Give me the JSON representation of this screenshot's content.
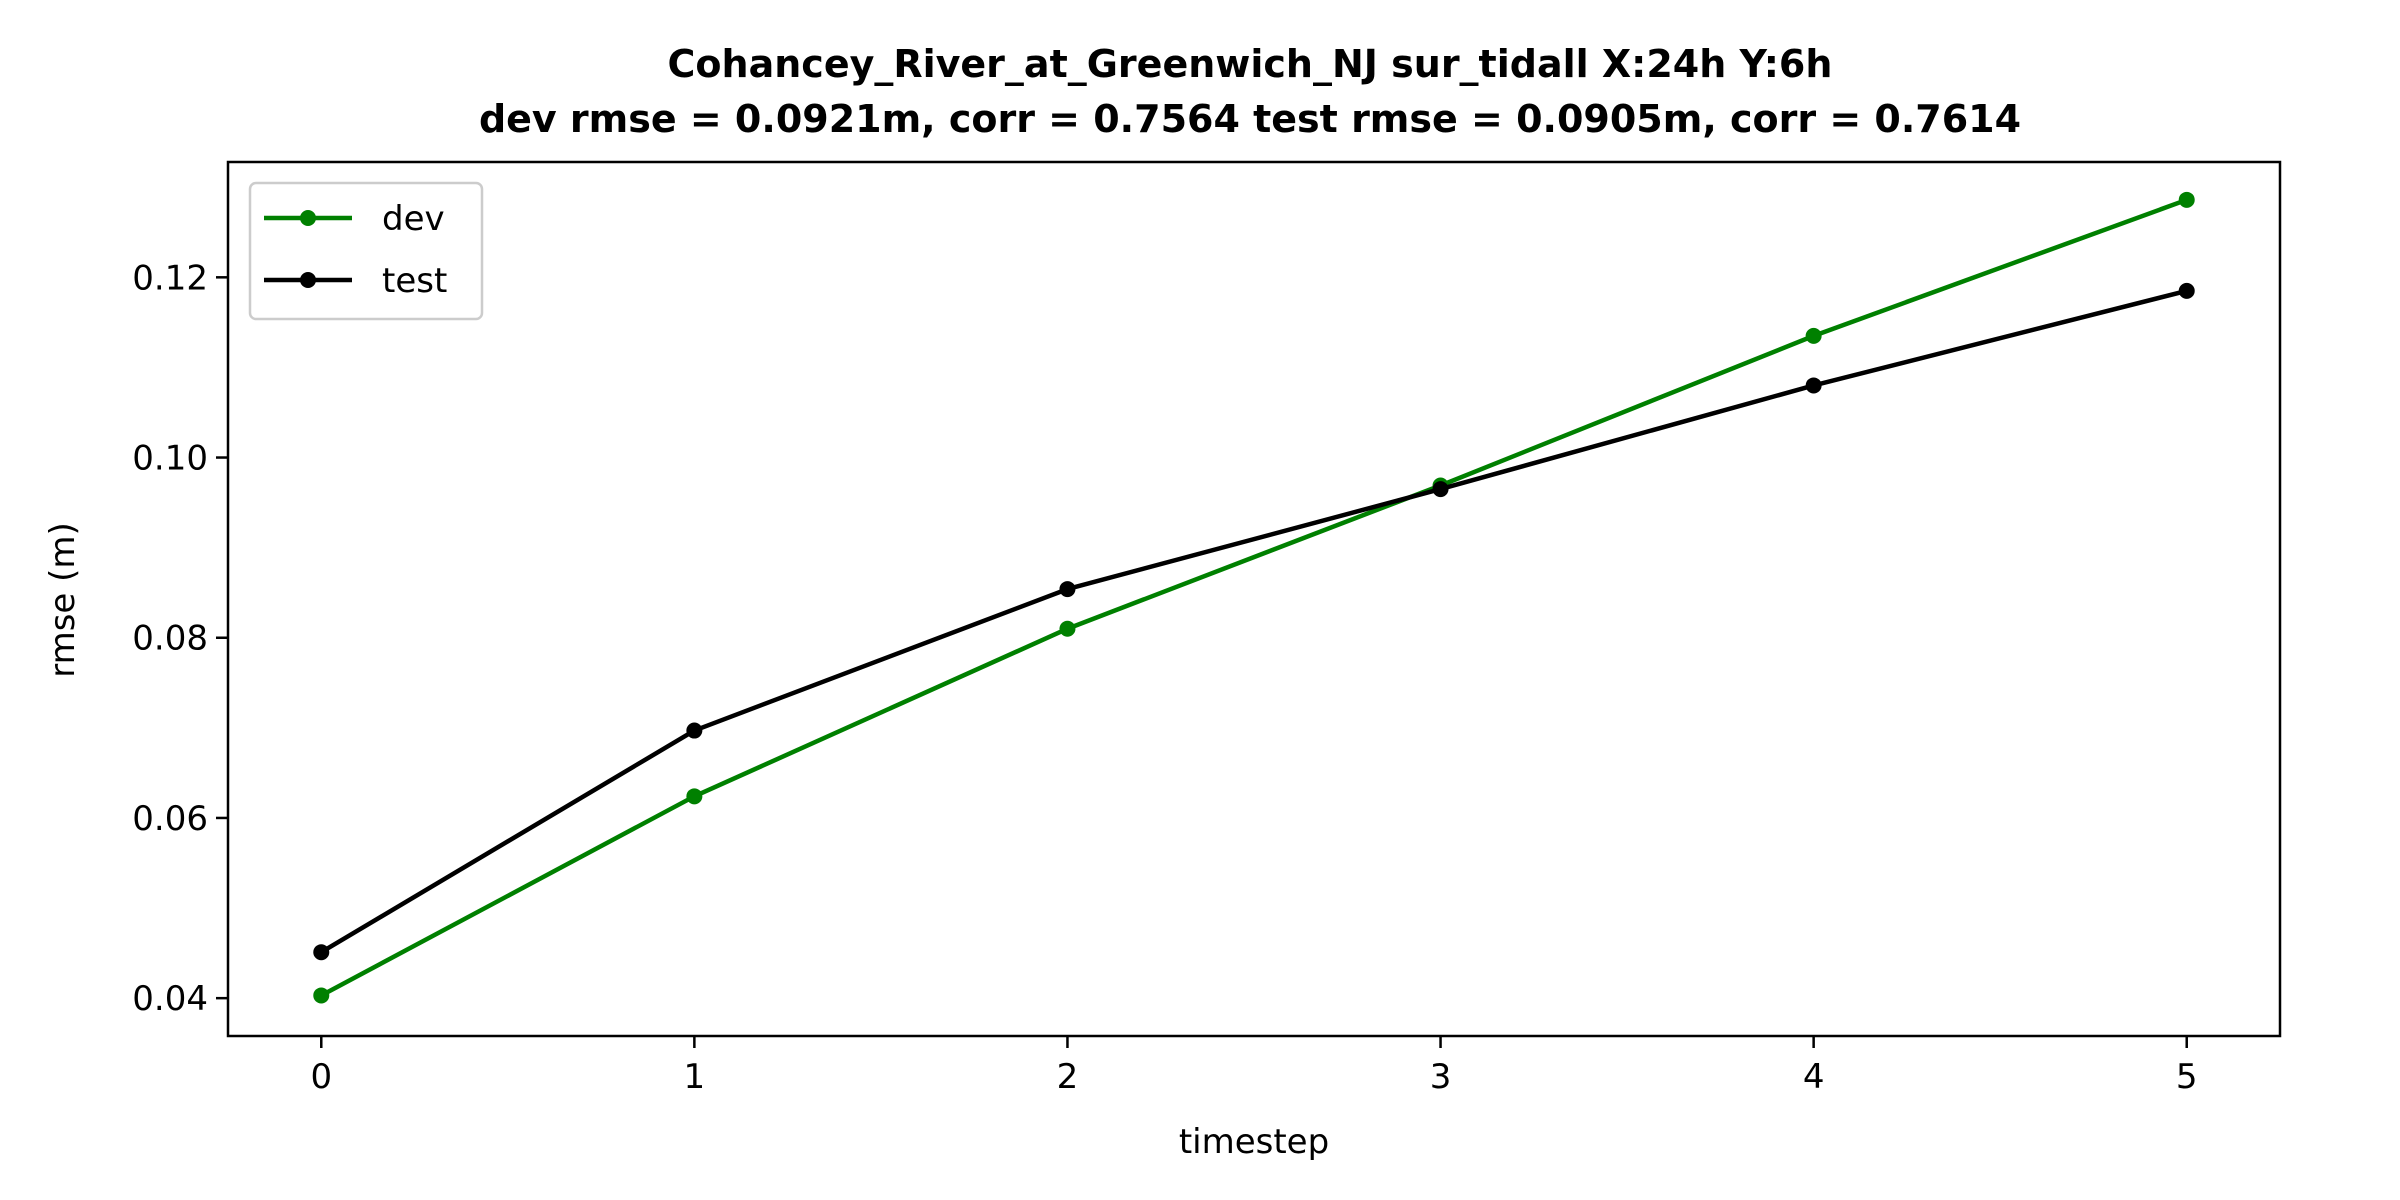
{
  "chart_data": {
    "type": "line",
    "title_line1": "Cohancey_River_at_Greenwich_NJ   sur_tidall   X:24h   Y:6h",
    "title_line2": "dev rmse = 0.0921m, corr = 0.7564   test rmse = 0.0905m, corr = 0.7614",
    "xlabel": "timestep",
    "ylabel": "rmse (m)",
    "x": [
      0,
      1,
      2,
      3,
      4,
      5
    ],
    "xlim": [
      -0.25,
      5.25
    ],
    "ylim": [
      0.0358,
      0.1328
    ],
    "xticks": [
      0,
      1,
      2,
      3,
      4,
      5
    ],
    "xtick_labels": [
      "0",
      "1",
      "2",
      "3",
      "4",
      "5"
    ],
    "yticks": [
      0.04,
      0.06,
      0.08,
      0.1,
      0.12
    ],
    "ytick_labels": [
      "0.04",
      "0.06",
      "0.08",
      "0.10",
      "0.12"
    ],
    "grid": false,
    "legend_position": "top-left",
    "series": [
      {
        "name": "dev",
        "color": "#008000",
        "values": [
          0.0403,
          0.0624,
          0.081,
          0.0969,
          0.1135,
          0.1286
        ]
      },
      {
        "name": "test",
        "color": "#000000",
        "values": [
          0.0451,
          0.0697,
          0.0854,
          0.0965,
          0.108,
          0.1185
        ]
      }
    ]
  }
}
